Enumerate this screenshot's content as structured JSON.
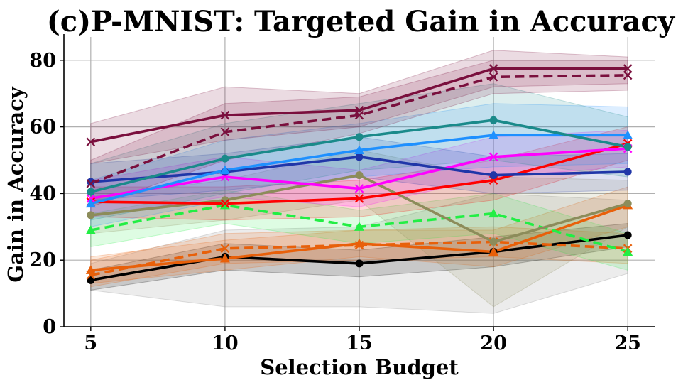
{
  "chart_data": {
    "type": "line",
    "title": "(c)P-MNIST: Targeted Gain in Accuracy",
    "xlabel": "Selection Budget",
    "ylabel": "Gain in Accuracy",
    "x": [
      5,
      10,
      15,
      20,
      25
    ],
    "xticks": [
      5,
      10,
      15,
      20,
      25
    ],
    "yticks": [
      0,
      20,
      40,
      60,
      80
    ],
    "xlim": [
      4,
      26
    ],
    "ylim": [
      0,
      87
    ],
    "grid": true,
    "legend": "none",
    "series": [
      {
        "name": "gray-band",
        "color": "#7f7f7f",
        "style": "none",
        "marker": "none",
        "values": [
          14,
          21,
          19,
          22.5,
          27.5
        ],
        "lower": [
          11,
          6,
          6,
          4,
          16
        ],
        "upper": [
          19,
          29,
          30,
          40,
          38
        ]
      },
      {
        "name": "black-circle",
        "color": "#000000",
        "style": "solid",
        "marker": "circle",
        "values": [
          14,
          21,
          19,
          22.5,
          27.5
        ],
        "lower": [
          11,
          17,
          15,
          18,
          24
        ],
        "upper": [
          17,
          25,
          23,
          27,
          31
        ]
      },
      {
        "name": "orange-solid-triangle",
        "color": "#e8600a",
        "style": "solid",
        "marker": "triangle",
        "values": [
          17,
          20.5,
          25,
          22.5,
          36.5
        ],
        "lower": [
          13,
          17,
          21,
          18,
          30
        ],
        "upper": [
          21,
          26,
          29,
          29,
          42
        ]
      },
      {
        "name": "orange-dashed-x",
        "color": "#e8600a",
        "style": "dashed",
        "marker": "x",
        "values": [
          15.5,
          23.5,
          24.5,
          25.5,
          23.5
        ],
        "lower": [
          12,
          19,
          20,
          21,
          19
        ],
        "upper": [
          20,
          28,
          29,
          30,
          28
        ]
      },
      {
        "name": "green-dashed-triangle",
        "color": "#22ee44",
        "style": "dashed",
        "marker": "triangle",
        "values": [
          29,
          36.5,
          30,
          34,
          22.5
        ],
        "lower": [
          24,
          31,
          25,
          28,
          17
        ],
        "upper": [
          34,
          41,
          35,
          40,
          28
        ]
      },
      {
        "name": "olive-circle",
        "color": "#8c8c5a",
        "style": "solid",
        "marker": "circle",
        "values": [
          33.5,
          38,
          45.5,
          25.5,
          37
        ],
        "lower": [
          28,
          32,
          38,
          6,
          30
        ],
        "upper": [
          39,
          44,
          53,
          45,
          44
        ]
      },
      {
        "name": "red-x",
        "color": "#ff0000",
        "style": "solid",
        "marker": "x",
        "values": [
          37.5,
          37,
          38.5,
          44,
          55
        ],
        "lower": [
          33,
          32,
          33,
          38,
          50
        ],
        "upper": [
          42,
          42,
          44,
          50,
          60
        ]
      },
      {
        "name": "magenta-x",
        "color": "#ff00ff",
        "style": "solid",
        "marker": "x",
        "values": [
          38.5,
          45,
          41.5,
          51,
          53.5
        ],
        "lower": [
          33,
          39,
          36,
          45,
          48
        ],
        "upper": [
          44,
          51,
          47,
          57,
          59
        ]
      },
      {
        "name": "navy-circle",
        "color": "#2036a8",
        "style": "solid",
        "marker": "circle",
        "values": [
          43.5,
          46.5,
          51,
          45.5,
          46.5
        ],
        "lower": [
          38,
          41,
          45,
          40,
          41
        ],
        "upper": [
          49,
          52,
          57,
          51,
          52
        ]
      },
      {
        "name": "azure-triangle",
        "color": "#1e90ff",
        "style": "solid",
        "marker": "triangle",
        "values": [
          37,
          47,
          53,
          57.5,
          57.5
        ],
        "lower": [
          30,
          38,
          45,
          48,
          49
        ],
        "upper": [
          44,
          56,
          61,
          67,
          66
        ]
      },
      {
        "name": "teal-circle",
        "color": "#1a8a8a",
        "style": "solid",
        "marker": "circle",
        "values": [
          40.5,
          50.5,
          57,
          62,
          54
        ],
        "lower": [
          32,
          40,
          47,
          50,
          45
        ],
        "upper": [
          49,
          61,
          67,
          73,
          63
        ]
      },
      {
        "name": "maroon-dashed-x",
        "color": "#7a0f3d",
        "style": "dashed",
        "marker": "x",
        "values": [
          43,
          58.5,
          63.5,
          75,
          75.5
        ],
        "lower": [
          36,
          50,
          58,
          70,
          71
        ],
        "upper": [
          50,
          67,
          69,
          80,
          80
        ]
      },
      {
        "name": "maroon-x",
        "color": "#7a0f3d",
        "style": "solid",
        "marker": "x",
        "values": [
          55.5,
          63.5,
          65,
          77.5,
          77.5
        ],
        "lower": [
          49,
          56,
          60,
          72,
          73
        ],
        "upper": [
          61,
          72,
          70,
          83,
          81
        ]
      }
    ]
  }
}
